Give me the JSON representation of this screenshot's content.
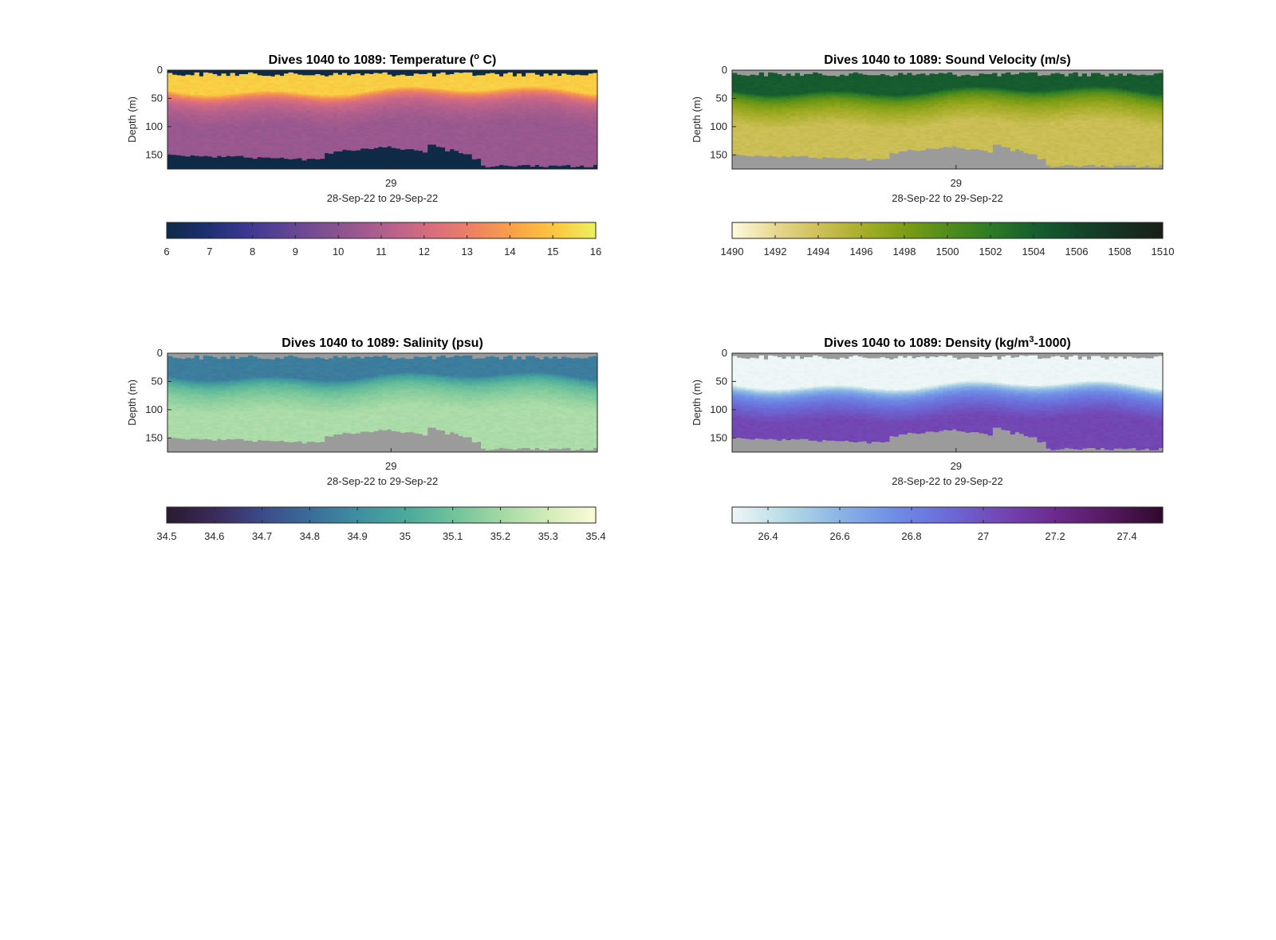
{
  "figure": {
    "background": "#ffffff",
    "nodata_color": "#9b9b9b",
    "axis_color": "#262626"
  },
  "chart_data": [
    {
      "type": "heatmap",
      "id": "temperature",
      "title_parts": [
        "Dives 1040 to 1089: Temperature (",
        "o",
        " C)"
      ],
      "title_sup_index": 1,
      "ylabel": "Depth (m)",
      "xtick": "29",
      "xlabel": "28-Sep-22 to 29-Sep-22",
      "ylim": [
        0,
        175
      ],
      "yticks": [
        "0",
        "50",
        "100",
        "150"
      ],
      "ytick_values": [
        0,
        50,
        100,
        150
      ],
      "xtick_position": 0.52,
      "colorbar": {
        "ticks": [
          "6",
          "7",
          "8",
          "9",
          "10",
          "11",
          "12",
          "13",
          "14",
          "15",
          "16"
        ],
        "tick_values": [
          6,
          7,
          8,
          9,
          10,
          11,
          12,
          13,
          14,
          15,
          16
        ],
        "range": [
          6,
          16
        ],
        "colors": [
          "#0e2a47",
          "#1c2f6e",
          "#3a3791",
          "#5d4393",
          "#7d4f91",
          "#9e5a8e",
          "#c0648a",
          "#dd707a",
          "#f08660",
          "#f9a645",
          "#fbc941",
          "#e9f25e"
        ]
      },
      "profile": {
        "surface_value": 15.2,
        "mid_value": 11.4,
        "deep_value": 10.4,
        "mixed_depth": 35,
        "nodata_fill": "#0e2a47"
      }
    },
    {
      "type": "heatmap",
      "id": "sound-velocity",
      "title_parts": [
        "Dives 1040 to 1089: Sound Velocity (m/s)"
      ],
      "ylabel": "Depth (m)",
      "xtick": "29",
      "xlabel": "28-Sep-22 to 29-Sep-22",
      "ylim": [
        0,
        175
      ],
      "yticks": [
        "0",
        "50",
        "100",
        "150"
      ],
      "ytick_values": [
        0,
        50,
        100,
        150
      ],
      "xtick_position": 0.52,
      "colorbar": {
        "ticks": [
          "1490",
          "1492",
          "1494",
          "1496",
          "1498",
          "1500",
          "1502",
          "1504",
          "1506",
          "1508",
          "1510"
        ],
        "tick_values": [
          1490,
          1492,
          1494,
          1496,
          1498,
          1500,
          1502,
          1504,
          1506,
          1508,
          1510
        ],
        "range": [
          1490,
          1510
        ],
        "colors": [
          "#fdfbe0",
          "#e7d890",
          "#cfc05a",
          "#a8ae2a",
          "#7d9d14",
          "#528c1c",
          "#2d7b25",
          "#165f2f",
          "#14472b",
          "#163222",
          "#1a1e16"
        ]
      },
      "profile": {
        "surface_value": 1504.3,
        "mid_value": 1498.5,
        "deep_value": 1494.2,
        "mixed_depth": 35,
        "nodata_fill": "#9b9b9b"
      }
    },
    {
      "type": "heatmap",
      "id": "salinity",
      "title_parts": [
        "Dives 1040 to 1089: Salinity (psu)"
      ],
      "ylabel": "Depth (m)",
      "xtick": "29",
      "xlabel": "28-Sep-22 to 29-Sep-22",
      "ylim": [
        0,
        175
      ],
      "yticks": [
        "0",
        "50",
        "100",
        "150"
      ],
      "ytick_values": [
        0,
        50,
        100,
        150
      ],
      "xtick_position": 0.52,
      "colorbar": {
        "ticks": [
          "34.5",
          "34.6",
          "34.7",
          "34.8",
          "34.9",
          "35",
          "35.1",
          "35.2",
          "35.3",
          "35.4"
        ],
        "tick_values": [
          34.5,
          34.6,
          34.7,
          34.8,
          34.9,
          35.0,
          35.1,
          35.2,
          35.3,
          35.4
        ],
        "range": [
          34.5,
          35.4
        ],
        "colors": [
          "#2a1a2e",
          "#3a2a5a",
          "#3c4a8a",
          "#3a6c9a",
          "#3f8ea0",
          "#4aa99c",
          "#6fc29a",
          "#a2d8a4",
          "#d3ecb8",
          "#fbfbd8"
        ]
      },
      "profile": {
        "surface_value": 34.85,
        "mid_value": 35.08,
        "deep_value": 35.22,
        "mixed_depth": 40,
        "nodata_fill": "#9b9b9b"
      }
    },
    {
      "type": "heatmap",
      "id": "density",
      "title_parts": [
        "Dives 1040 to 1089: Density (kg/m",
        "3",
        "-1000)"
      ],
      "title_sup_index": 1,
      "ylabel": "Depth (m)",
      "xtick": "29",
      "xlabel": "28-Sep-22 to 29-Sep-22",
      "ylim": [
        0,
        175
      ],
      "yticks": [
        "0",
        "50",
        "100",
        "150"
      ],
      "ytick_values": [
        0,
        50,
        100,
        150
      ],
      "xtick_position": 0.52,
      "colorbar": {
        "ticks": [
          "26.4",
          "26.6",
          "26.8",
          "27",
          "27.2",
          "27.4"
        ],
        "tick_values": [
          26.4,
          26.6,
          26.8,
          27.0,
          27.2,
          27.4
        ],
        "range": [
          26.3,
          27.5
        ],
        "colors": [
          "#eef6f6",
          "#b7dbe6",
          "#8ab4e6",
          "#6f8ee6",
          "#6b6bd8",
          "#7346b3",
          "#6b2a8e",
          "#55195f",
          "#2f0a2a"
        ]
      },
      "profile": {
        "surface_value": 26.3,
        "mid_value": 26.75,
        "deep_value": 27.05,
        "mixed_depth": 55,
        "nodata_fill": "#9b9b9b"
      }
    }
  ]
}
